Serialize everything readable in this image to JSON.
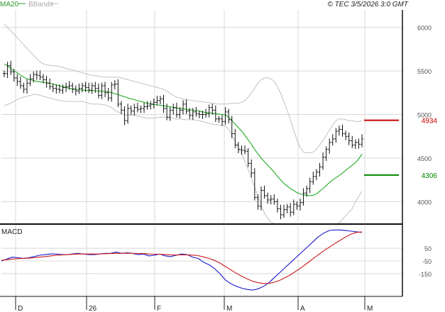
{
  "chart_data": [
    {
      "type": "ohlc",
      "panel": "price",
      "legend": [
        "MA20",
        "BBands"
      ],
      "copyright": "© TEC 3/5/2026 3:0 GMT",
      "ylim": [
        3760,
        6200
      ],
      "y_ticks": [
        4000,
        4500,
        5000,
        5500,
        6000
      ],
      "y_tick_labels": [
        "4000",
        "4500",
        "5000",
        "5500",
        "6000"
      ],
      "x_tick_labels": [
        "D",
        "26",
        "F",
        "M",
        "A",
        "M"
      ],
      "grid": true,
      "levels": [
        {
          "label": "4934",
          "value": 4934,
          "color": "#cc0000"
        },
        {
          "label": "4306",
          "value": 4306,
          "color": "#008800"
        }
      ],
      "close": [
        5470,
        5560,
        5490,
        5420,
        5380,
        5330,
        5290,
        5360,
        5410,
        5460,
        5450,
        5430,
        5400,
        5360,
        5320,
        5300,
        5290,
        5280,
        5310,
        5320,
        5330,
        5290,
        5270,
        5300,
        5330,
        5310,
        5280,
        5330,
        5300,
        5220,
        5330,
        5250,
        5190,
        5340,
        5350,
        5120,
        5050,
        4930,
        5070,
        5040,
        5080,
        5060,
        5070,
        5090,
        5100,
        5120,
        5140,
        5160,
        5180,
        5070,
        4970,
        5050,
        5080,
        5000,
        5050,
        5120,
        5040,
        4990,
        5030,
        5010,
        5000,
        5000,
        5010,
        5080,
        5050,
        4950,
        4950,
        4920,
        5030,
        4940,
        4780,
        4650,
        4600,
        4590,
        4580,
        4440,
        4330,
        4050,
        3950,
        4130,
        4070,
        4020,
        4030,
        4000,
        3920,
        3850,
        3910,
        3940,
        3880,
        3970,
        3950,
        3990,
        4100,
        4150,
        4230,
        4290,
        4340,
        4400,
        4510,
        4600,
        4680,
        4720,
        4810,
        4830,
        4780,
        4750,
        4700,
        4650,
        4680,
        4660,
        4720
      ],
      "ma20": [
        5580,
        5560,
        5530,
        5500,
        5480,
        5450,
        5430,
        5410,
        5400,
        5390,
        5380,
        5375,
        5370,
        5365,
        5360,
        5350,
        5340,
        5330,
        5320,
        5310,
        5300,
        5295,
        5290,
        5285,
        5280,
        5278,
        5276,
        5275,
        5273,
        5270,
        5268,
        5265,
        5260,
        5250,
        5240,
        5230,
        5215,
        5205,
        5190,
        5180,
        5170,
        5160,
        5150,
        5140,
        5130,
        5120,
        5115,
        5110,
        5105,
        5100,
        5095,
        5090,
        5080,
        5075,
        5070,
        5065,
        5060,
        5055,
        5050,
        5045,
        5040,
        5030,
        5025,
        5020,
        5015,
        5010,
        5005,
        5000,
        4995,
        4970,
        4930,
        4890,
        4850,
        4810,
        4760,
        4710,
        4660,
        4600,
        4550,
        4500,
        4460,
        4420,
        4380,
        4340,
        4290,
        4250,
        4210,
        4180,
        4150,
        4130,
        4105,
        4090,
        4080,
        4075,
        4070,
        4075,
        4090,
        4120,
        4150,
        4185,
        4220,
        4250,
        4275,
        4300,
        4330,
        4360,
        4390,
        4420,
        4450,
        4490,
        4550
      ],
      "bb_upper": [
        6040,
        6000,
        5960,
        5920,
        5880,
        5840,
        5800,
        5760,
        5720,
        5680,
        5640,
        5605,
        5580,
        5570,
        5565,
        5560,
        5555,
        5550,
        5540,
        5530,
        5520,
        5510,
        5500,
        5490,
        5480,
        5470,
        5460,
        5450,
        5445,
        5440,
        5435,
        5430,
        5430,
        5430,
        5430,
        5430,
        5420,
        5410,
        5400,
        5390,
        5380,
        5370,
        5360,
        5350,
        5340,
        5330,
        5320,
        5310,
        5300,
        5290,
        5270,
        5240,
        5220,
        5200,
        5190,
        5180,
        5170,
        5165,
        5160,
        5155,
        5150,
        5145,
        5140,
        5135,
        5130,
        5125,
        5120,
        5120,
        5120,
        5125,
        5130,
        5130,
        5130,
        5140,
        5160,
        5200,
        5250,
        5300,
        5360,
        5400,
        5420,
        5420,
        5410,
        5380,
        5320,
        5240,
        5150,
        5050,
        4940,
        4820,
        4710,
        4620,
        4570,
        4560,
        4560,
        4570,
        4600,
        4650,
        4700,
        4760,
        4820,
        4880,
        4930,
        4950,
        4950,
        4940,
        4930,
        4930,
        4920,
        4920,
        4930
      ],
      "bb_lower": [
        5100,
        5115,
        5130,
        5150,
        5170,
        5190,
        5200,
        5210,
        5220,
        5230,
        5230,
        5220,
        5210,
        5200,
        5190,
        5180,
        5170,
        5160,
        5160,
        5150,
        5150,
        5150,
        5150,
        5150,
        5150,
        5140,
        5130,
        5120,
        5120,
        5120,
        5115,
        5110,
        5100,
        5080,
        5050,
        5030,
        5010,
        5000,
        4990,
        4990,
        4990,
        4985,
        4975,
        4965,
        4960,
        4960,
        4960,
        4965,
        4970,
        4970,
        4970,
        4960,
        4955,
        4950,
        4950,
        4945,
        4940,
        4940,
        4940,
        4935,
        4930,
        4920,
        4910,
        4900,
        4890,
        4885,
        4880,
        4875,
        4870,
        4830,
        4760,
        4690,
        4620,
        4550,
        4460,
        4370,
        4270,
        4170,
        4060,
        3960,
        3870,
        3810,
        3770,
        3750,
        3740,
        3740,
        3740,
        3740,
        3740,
        3740,
        3740,
        3740,
        3740,
        3740,
        3740,
        3740,
        3740,
        3740,
        3740,
        3740,
        3740,
        3740,
        3740,
        3760,
        3800,
        3840,
        3880,
        3920,
        4000,
        4060,
        4120
      ]
    },
    {
      "type": "line",
      "panel": "macd",
      "title": "MACD",
      "ylim": [
        -330,
        230
      ],
      "y_ticks": [
        50,
        -50,
        -150
      ],
      "y_tick_labels": [
        "50",
        "-50",
        "-150"
      ],
      "grid": true,
      "series": [
        {
          "color": "#1a1acc",
          "values": [
            -50,
            -35,
            -20,
            -25,
            -30,
            -25,
            -15,
            -5,
            0,
            5,
            5,
            0,
            0,
            5,
            10,
            5,
            0,
            0,
            5,
            10,
            10,
            20,
            10,
            15,
            10,
            0,
            5,
            -10,
            -5,
            5,
            -10,
            -15,
            -5,
            5,
            0,
            -20,
            -30,
            -60,
            -80,
            -110,
            -150,
            -200,
            -230,
            -250,
            -265,
            -275,
            -280,
            -270,
            -250,
            -220,
            -180,
            -140,
            -100,
            -60,
            -20,
            20,
            60,
            100,
            140,
            170,
            190,
            195,
            195,
            190,
            185,
            180,
            175
          ]
        },
        {
          "color": "#cc1a1a",
          "values": [
            -45,
            -40,
            -35,
            -32,
            -30,
            -28,
            -25,
            -20,
            -15,
            -10,
            -5,
            -3,
            0,
            2,
            5,
            5,
            5,
            5,
            5,
            7,
            8,
            10,
            10,
            11,
            10,
            9,
            8,
            5,
            3,
            3,
            1,
            -2,
            -3,
            -2,
            -2,
            -4,
            -8,
            -18,
            -30,
            -46,
            -67,
            -94,
            -121,
            -147,
            -171,
            -192,
            -210,
            -222,
            -228,
            -227,
            -218,
            -202,
            -181,
            -157,
            -129,
            -99,
            -67,
            -34,
            -1,
            30,
            58,
            86,
            113,
            139,
            162,
            175,
            180
          ]
        }
      ]
    }
  ]
}
